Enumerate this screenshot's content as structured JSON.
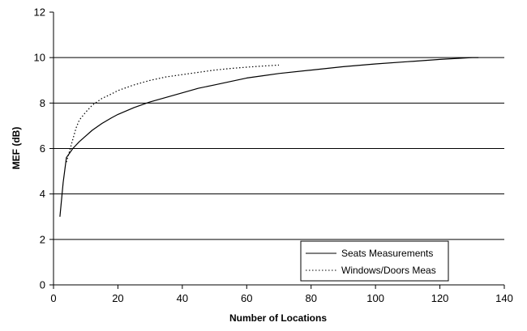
{
  "chart_data": {
    "type": "line",
    "title": "",
    "xlabel": "Number of Locations",
    "ylabel": "MEF (dB)",
    "xlim": [
      0,
      140
    ],
    "ylim": [
      0,
      12
    ],
    "xticks": [
      0,
      20,
      40,
      60,
      80,
      100,
      120,
      140
    ],
    "yticks": [
      0,
      2,
      4,
      6,
      8,
      10,
      12
    ],
    "x_tick_labels": [
      "0",
      "20",
      "40",
      "60",
      "80",
      "100",
      "120",
      "140"
    ],
    "y_tick_labels": [
      "0",
      "2",
      "4",
      "6",
      "8",
      "10",
      "12"
    ],
    "grid": "horizontal major gridlines",
    "legend_position": "bottom-right",
    "series": [
      {
        "name": "Seats Measurements",
        "style": "solid",
        "color": "#000000",
        "points": [
          [
            2,
            3.0
          ],
          [
            3,
            4.5
          ],
          [
            4,
            5.6
          ],
          [
            5,
            5.8
          ],
          [
            6,
            6.0
          ],
          [
            8,
            6.3
          ],
          [
            10,
            6.55
          ],
          [
            12,
            6.8
          ],
          [
            15,
            7.1
          ],
          [
            18,
            7.35
          ],
          [
            20,
            7.5
          ],
          [
            25,
            7.8
          ],
          [
            30,
            8.05
          ],
          [
            35,
            8.25
          ],
          [
            40,
            8.45
          ],
          [
            45,
            8.65
          ],
          [
            50,
            8.8
          ],
          [
            55,
            8.95
          ],
          [
            60,
            9.1
          ],
          [
            65,
            9.2
          ],
          [
            70,
            9.3
          ],
          [
            80,
            9.45
          ],
          [
            90,
            9.6
          ],
          [
            100,
            9.72
          ],
          [
            110,
            9.82
          ],
          [
            120,
            9.92
          ],
          [
            130,
            10.0
          ],
          [
            132,
            10.0
          ]
        ]
      },
      {
        "name": "Windows/Doors Meas",
        "style": "dotted",
        "color": "#000000",
        "points": [
          [
            4,
            5.4
          ],
          [
            5,
            5.9
          ],
          [
            6,
            6.4
          ],
          [
            7,
            6.9
          ],
          [
            8,
            7.25
          ],
          [
            10,
            7.6
          ],
          [
            12,
            7.9
          ],
          [
            15,
            8.2
          ],
          [
            18,
            8.4
          ],
          [
            20,
            8.55
          ],
          [
            25,
            8.8
          ],
          [
            30,
            9.0
          ],
          [
            35,
            9.15
          ],
          [
            40,
            9.25
          ],
          [
            45,
            9.35
          ],
          [
            50,
            9.45
          ],
          [
            55,
            9.52
          ],
          [
            60,
            9.58
          ],
          [
            65,
            9.63
          ],
          [
            70,
            9.67
          ]
        ]
      }
    ]
  }
}
